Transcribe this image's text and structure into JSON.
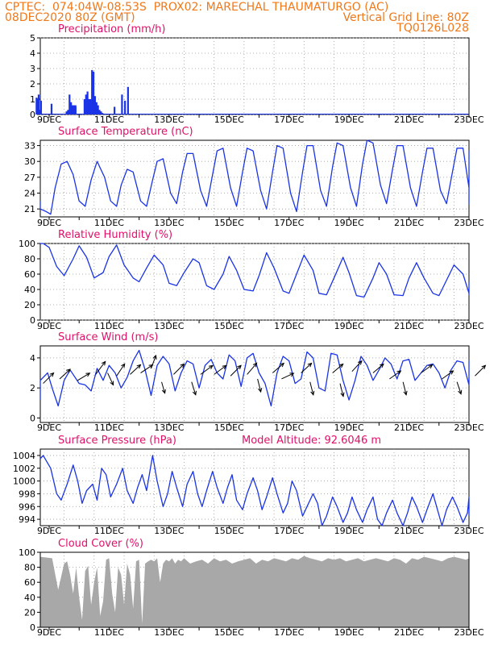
{
  "header": {
    "line1_left": "CPTEC:  074:04W-08:53S  PROX02: MARECHAL THAUMATURGO (AC)",
    "line2_left": "08DEC2020 80Z (GMT)",
    "line2_right": "Vertical Grid Line: 80Z",
    "line3_right": "TQ0126L028"
  },
  "colors": {
    "header": "#f07818",
    "panel_title": "#e0106a",
    "series": "#1a33e6",
    "cloud": "#a8a8a8",
    "wind_arrow": "#000000",
    "grid": "#9a9a9a"
  },
  "x_axis": {
    "tick_labels": [
      "9DEC",
      "11DEC",
      "13DEC",
      "15DEC",
      "17DEC",
      "19DEC",
      "21DEC",
      "23DEC"
    ]
  },
  "chart_data": [
    {
      "id": "precip",
      "type": "bar",
      "title": "Precipitation (mm/h)",
      "ylim": [
        0,
        5
      ],
      "yticks": [
        "0",
        "1",
        "2",
        "3",
        "4",
        "5"
      ],
      "grid": true,
      "x_days": [
        0.05,
        0.08,
        0.12,
        0.15,
        0.2,
        0.55,
        1.05,
        1.1,
        1.15,
        1.2,
        1.25,
        1.3,
        1.35,
        1.35,
        1.65,
        1.7,
        1.75,
        1.8,
        1.85,
        1.9,
        1.95,
        2.0,
        2.05,
        2.1,
        2.15,
        2.2,
        2.25,
        2.65,
        2.9,
        3.0,
        3.1
      ],
      "values": [
        1.1,
        1.0,
        1.3,
        0.3,
        0.9,
        0.7,
        0.2,
        0.3,
        1.3,
        0.8,
        0.6,
        0.6,
        0.5,
        0.6,
        1.0,
        1.3,
        1.5,
        1.0,
        1.0,
        2.9,
        2.8,
        1.2,
        0.8,
        0.6,
        0.3,
        0.2,
        0.1,
        0.5,
        1.3,
        0.9,
        1.8
      ]
    },
    {
      "id": "temp",
      "type": "line",
      "title": "Surface Temperature (nC)",
      "ylim": [
        19.5,
        34
      ],
      "yticks": [
        "21",
        "24",
        "27",
        "30",
        "33"
      ],
      "grid": true,
      "x_days": [
        0.0,
        0.2,
        0.4,
        0.55,
        0.7,
        0.9,
        1.1,
        1.3,
        1.5,
        1.7,
        1.9,
        2.1,
        2.35,
        2.55,
        2.75,
        2.9,
        3.1,
        3.3,
        3.55,
        3.75,
        3.95,
        4.1,
        4.3,
        4.55,
        4.75,
        4.95,
        5.1,
        5.3,
        5.55,
        5.75,
        5.95,
        6.1,
        6.3,
        6.55,
        6.75,
        6.95,
        7.1,
        7.3,
        7.55,
        7.75,
        7.95,
        8.1,
        8.3,
        8.55,
        8.75,
        8.95,
        9.1,
        9.3,
        9.55,
        9.75,
        9.95,
        10.1,
        10.3,
        10.55,
        10.75,
        10.95,
        11.1,
        11.3,
        11.55,
        11.75,
        11.95,
        12.1,
        12.3,
        12.55,
        12.75,
        12.95,
        13.1,
        13.3,
        13.55,
        13.75,
        13.95,
        14.1,
        14.3,
        14.55,
        14.75,
        14.95,
        15.0
      ],
      "values": [
        22.5,
        21.0,
        20.5,
        20.0,
        25.0,
        29.5,
        30.0,
        27.5,
        22.5,
        21.5,
        26.5,
        30.0,
        27.0,
        22.5,
        21.5,
        25.5,
        28.5,
        28.0,
        22.5,
        21.5,
        26.5,
        30.0,
        30.5,
        24.0,
        22.0,
        28.0,
        31.5,
        31.5,
        24.5,
        21.5,
        27.5,
        32.0,
        32.5,
        25.0,
        21.5,
        28.0,
        32.5,
        32.0,
        24.5,
        21.0,
        28.0,
        33.0,
        32.5,
        24.0,
        20.5,
        28.0,
        33.0,
        33.0,
        24.5,
        21.5,
        29.0,
        33.5,
        33.0,
        25.0,
        21.5,
        29.5,
        34.0,
        33.5,
        25.5,
        22.0,
        28.5,
        33.0,
        33.0,
        25.0,
        21.5,
        28.0,
        32.5,
        32.5,
        24.5,
        22.0,
        28.0,
        32.5,
        32.5,
        25.0,
        22.0,
        27.5,
        32.0
      ]
    },
    {
      "id": "rh",
      "type": "line",
      "title": "Relative Humidity (%)",
      "ylim": [
        0,
        100
      ],
      "yticks": [
        "0",
        "20",
        "40",
        "60",
        "80",
        "100"
      ],
      "grid": true,
      "x_days": [
        0.0,
        0.3,
        0.5,
        0.75,
        1.0,
        1.3,
        1.5,
        1.75,
        2.0,
        2.3,
        2.5,
        2.75,
        3.0,
        3.3,
        3.5,
        3.75,
        4.0,
        4.3,
        4.5,
        4.75,
        5.0,
        5.3,
        5.5,
        5.75,
        6.0,
        6.3,
        6.5,
        6.75,
        7.0,
        7.3,
        7.5,
        7.75,
        8.0,
        8.3,
        8.5,
        8.75,
        9.0,
        9.3,
        9.5,
        9.75,
        10.0,
        10.3,
        10.5,
        10.75,
        11.0,
        11.3,
        11.5,
        11.75,
        12.0,
        12.3,
        12.5,
        12.75,
        13.0,
        13.3,
        13.5,
        13.75,
        14.0,
        14.3,
        14.5,
        14.75,
        15.0
      ],
      "values": [
        100,
        100,
        95,
        70,
        58,
        80,
        97,
        82,
        55,
        62,
        83,
        98,
        72,
        55,
        50,
        68,
        85,
        72,
        48,
        45,
        62,
        80,
        75,
        45,
        40,
        60,
        83,
        65,
        40,
        38,
        58,
        88,
        68,
        38,
        35,
        60,
        85,
        65,
        35,
        33,
        55,
        82,
        62,
        32,
        30,
        55,
        75,
        60,
        33,
        32,
        55,
        75,
        55,
        35,
        32,
        52,
        72,
        60,
        35,
        33,
        50
      ]
    },
    {
      "id": "wind",
      "type": "line",
      "title": "Surface Wind (m/s)",
      "ylim": [
        -0.3,
        4.8
      ],
      "yticks": [
        "0",
        "2",
        "4"
      ],
      "grid": true,
      "x_days": [
        0.0,
        0.2,
        0.45,
        0.6,
        0.8,
        1.0,
        1.2,
        1.5,
        1.7,
        1.9,
        2.1,
        2.3,
        2.5,
        2.7,
        2.9,
        3.1,
        3.3,
        3.5,
        3.7,
        3.9,
        4.1,
        4.3,
        4.5,
        4.7,
        4.9,
        5.1,
        5.3,
        5.5,
        5.7,
        5.9,
        6.1,
        6.3,
        6.5,
        6.7,
        6.9,
        7.1,
        7.3,
        7.5,
        7.7,
        7.9,
        8.1,
        8.3,
        8.5,
        8.7,
        8.9,
        9.1,
        9.3,
        9.5,
        9.7,
        9.9,
        10.1,
        10.3,
        10.5,
        10.7,
        10.9,
        11.1,
        11.3,
        11.5,
        11.7,
        11.9,
        12.1,
        12.3,
        12.5,
        12.7,
        12.9,
        13.1,
        13.3,
        13.5,
        13.7,
        13.9,
        14.1,
        14.3,
        14.5,
        14.7,
        14.9,
        15.0
      ],
      "values": [
        1.2,
        2.5,
        3.0,
        2.0,
        0.8,
        2.5,
        3.2,
        2.3,
        2.2,
        1.8,
        3.3,
        2.5,
        3.5,
        3.0,
        2.0,
        2.7,
        3.8,
        4.5,
        3.2,
        1.5,
        3.5,
        4.1,
        3.6,
        1.8,
        3.0,
        3.8,
        3.6,
        2.0,
        3.5,
        3.9,
        3.0,
        2.6,
        4.2,
        3.8,
        2.1,
        4.0,
        4.3,
        3.0,
        2.3,
        0.8,
        3.0,
        4.1,
        3.8,
        2.3,
        2.6,
        4.4,
        4.0,
        2.0,
        1.8,
        4.3,
        4.2,
        2.5,
        1.2,
        2.5,
        4.1,
        3.5,
        2.5,
        3.2,
        4.0,
        3.6,
        2.6,
        3.8,
        3.9,
        2.5,
        3.0,
        3.5,
        3.6,
        3.0,
        2.0,
        3.2,
        3.8,
        3.7,
        2.2,
        3.8,
        3.6,
        2.5
      ],
      "arrows": [
        {
          "x_day": 0.3,
          "y": 2.3,
          "dx": 13,
          "dy": -13
        },
        {
          "x_day": 0.85,
          "y": 2.6,
          "dx": 13,
          "dy": -12
        },
        {
          "x_day": 1.45,
          "y": 2.5,
          "dx": 15,
          "dy": -9
        },
        {
          "x_day": 2.05,
          "y": 2.9,
          "dx": 12,
          "dy": -16
        },
        {
          "x_day": 2.45,
          "y": 3.0,
          "dx": 7,
          "dy": 15
        },
        {
          "x_day": 2.75,
          "y": 2.8,
          "dx": 10,
          "dy": -15
        },
        {
          "x_day": 3.2,
          "y": 2.9,
          "dx": 13,
          "dy": -12
        },
        {
          "x_day": 3.55,
          "y": 3.0,
          "dx": 15,
          "dy": -10
        },
        {
          "x_day": 3.9,
          "y": 3.3,
          "dx": 6,
          "dy": -16
        },
        {
          "x_day": 4.25,
          "y": 2.4,
          "dx": 4,
          "dy": 14
        },
        {
          "x_day": 4.65,
          "y": 2.9,
          "dx": 13,
          "dy": -13
        },
        {
          "x_day": 5.25,
          "y": 2.4,
          "dx": 5,
          "dy": 16
        },
        {
          "x_day": 5.55,
          "y": 2.9,
          "dx": 15,
          "dy": -11
        },
        {
          "x_day": 6.0,
          "y": 2.9,
          "dx": 15,
          "dy": -11
        },
        {
          "x_day": 6.55,
          "y": 2.8,
          "dx": 13,
          "dy": -13
        },
        {
          "x_day": 7.1,
          "y": 2.9,
          "dx": 12,
          "dy": -14
        },
        {
          "x_day": 7.45,
          "y": 2.6,
          "dx": 4,
          "dy": 16
        },
        {
          "x_day": 7.95,
          "y": 3.0,
          "dx": 14,
          "dy": -12
        },
        {
          "x_day": 8.25,
          "y": 2.6,
          "dx": 15,
          "dy": -7
        },
        {
          "x_day": 8.9,
          "y": 3.0,
          "dx": 13,
          "dy": -12
        },
        {
          "x_day": 9.2,
          "y": 2.4,
          "dx": 4,
          "dy": 16
        },
        {
          "x_day": 9.95,
          "y": 3.0,
          "dx": 13,
          "dy": -11
        },
        {
          "x_day": 10.2,
          "y": 2.3,
          "dx": 4,
          "dy": 16
        },
        {
          "x_day": 10.6,
          "y": 3.1,
          "dx": 12,
          "dy": -13
        },
        {
          "x_day": 11.3,
          "y": 3.0,
          "dx": 13,
          "dy": -11
        },
        {
          "x_day": 11.85,
          "y": 2.6,
          "dx": 14,
          "dy": -10
        },
        {
          "x_day": 12.3,
          "y": 2.4,
          "dx": 4,
          "dy": 16
        },
        {
          "x_day": 12.9,
          "y": 3.0,
          "dx": 14,
          "dy": -10
        },
        {
          "x_day": 13.6,
          "y": 2.6,
          "dx": 14,
          "dy": -10
        },
        {
          "x_day": 14.1,
          "y": 2.4,
          "dx": 5,
          "dy": 15
        },
        {
          "x_day": 14.7,
          "y": 2.8,
          "dx": 13,
          "dy": -13
        }
      ]
    },
    {
      "id": "pressure",
      "type": "line",
      "title": "Surface Pressure (hPa)",
      "subtitle": "Model Altitude: 92.6046 m",
      "ylim": [
        993,
        1005
      ],
      "yticks": [
        "994",
        "996",
        "998",
        "1000",
        "1002",
        "1004"
      ],
      "grid": true,
      "x_days": [
        0.0,
        0.3,
        0.55,
        0.75,
        0.9,
        1.1,
        1.3,
        1.45,
        1.6,
        1.75,
        1.95,
        2.1,
        2.25,
        2.4,
        2.55,
        2.75,
        2.95,
        3.1,
        3.3,
        3.45,
        3.6,
        3.75,
        3.95,
        4.1,
        4.3,
        4.45,
        4.6,
        4.75,
        4.95,
        5.1,
        5.3,
        5.45,
        5.6,
        5.75,
        5.95,
        6.1,
        6.3,
        6.45,
        6.6,
        6.75,
        6.95,
        7.1,
        7.3,
        7.45,
        7.6,
        7.75,
        7.95,
        8.1,
        8.3,
        8.45,
        8.6,
        8.75,
        8.95,
        9.1,
        9.3,
        9.45,
        9.6,
        9.75,
        9.95,
        10.1,
        10.3,
        10.45,
        10.6,
        10.75,
        10.95,
        11.1,
        11.3,
        11.45,
        11.6,
        11.75,
        11.95,
        12.1,
        12.3,
        12.45,
        12.6,
        12.75,
        12.95,
        13.1,
        13.3,
        13.45,
        13.6,
        13.75,
        13.95,
        14.1,
        14.3,
        14.45,
        14.6,
        14.75,
        14.9,
        15.0
      ],
      "values": [
        1003.5,
        1004.0,
        1002.0,
        998.0,
        997.0,
        999.5,
        1002.5,
        1000.0,
        996.5,
        998.5,
        999.5,
        997.0,
        1002.0,
        1001.0,
        997.5,
        999.5,
        1002.0,
        998.5,
        996.5,
        999.0,
        1001.0,
        998.5,
        1004.0,
        1000.0,
        996.0,
        998.0,
        1001.5,
        999.0,
        996.0,
        999.5,
        1001.5,
        998.0,
        996.0,
        998.5,
        1001.5,
        999.0,
        996.5,
        999.0,
        1001.0,
        997.0,
        995.5,
        998.0,
        1000.5,
        998.5,
        995.5,
        997.5,
        1000.5,
        998.0,
        995.0,
        996.5,
        1000.0,
        998.5,
        994.5,
        996.0,
        998.0,
        996.5,
        993.0,
        994.5,
        997.5,
        996.0,
        993.5,
        995.0,
        997.5,
        995.5,
        993.5,
        995.5,
        997.5,
        994.0,
        993.0,
        995.0,
        997.0,
        995.0,
        993.0,
        995.0,
        997.5,
        996.0,
        993.5,
        995.5,
        998.0,
        995.5,
        993.0,
        995.5,
        997.5,
        996.0,
        993.5,
        995.0,
        997.5,
        996.5,
        995.0,
        994.5
      ]
    },
    {
      "id": "cloud",
      "type": "area",
      "title": "Cloud Cover (%)",
      "ylim": [
        0,
        100
      ],
      "yticks": [
        "0",
        "20",
        "40",
        "60",
        "80",
        "100"
      ],
      "grid": true,
      "x_days": [
        0.0,
        0.2,
        0.4,
        0.6,
        0.8,
        1.0,
        1.1,
        1.2,
        1.3,
        1.4,
        1.5,
        1.6,
        1.7,
        1.8,
        1.9,
        2.0,
        2.1,
        2.2,
        2.3,
        2.4,
        2.5,
        2.6,
        2.7,
        2.8,
        2.9,
        3.0,
        3.1,
        3.2,
        3.3,
        3.4,
        3.5,
        3.6,
        3.7,
        3.8,
        3.9,
        4.0,
        4.1,
        4.2,
        4.3,
        4.4,
        4.5,
        4.6,
        4.7,
        4.8,
        4.9,
        5.0,
        5.2,
        5.4,
        5.6,
        5.8,
        6.0,
        6.2,
        6.4,
        6.6,
        6.8,
        7.0,
        7.2,
        7.4,
        7.6,
        7.8,
        8.0,
        8.2,
        8.4,
        8.6,
        8.8,
        9.0,
        9.2,
        9.4,
        9.6,
        9.8,
        10.0,
        10.2,
        10.4,
        10.6,
        10.8,
        11.0,
        11.2,
        11.4,
        11.6,
        11.8,
        12.0,
        12.2,
        12.4,
        12.6,
        12.8,
        13.0,
        13.2,
        13.4,
        13.6,
        13.8,
        14.0,
        14.2,
        14.4,
        14.6,
        14.8,
        15.0
      ],
      "values": [
        95,
        94,
        93,
        92,
        50,
        85,
        88,
        70,
        45,
        80,
        40,
        10,
        75,
        82,
        30,
        60,
        80,
        15,
        35,
        90,
        92,
        45,
        20,
        80,
        70,
        30,
        85,
        70,
        25,
        88,
        90,
        5,
        85,
        88,
        90,
        88,
        92,
        60,
        85,
        90,
        88,
        92,
        85,
        90,
        88,
        92,
        85,
        88,
        90,
        85,
        92,
        88,
        90,
        85,
        88,
        90,
        92,
        85,
        90,
        88,
        92,
        90,
        88,
        92,
        90,
        95,
        92,
        90,
        88,
        92,
        90,
        92,
        88,
        90,
        92,
        88,
        90,
        92,
        90,
        88,
        92,
        90,
        85,
        92,
        90,
        94,
        92,
        90,
        88,
        92,
        94,
        92,
        90,
        92,
        95,
        96
      ]
    }
  ]
}
